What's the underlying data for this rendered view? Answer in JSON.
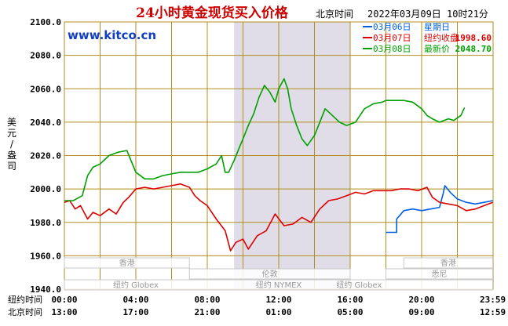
{
  "header": {
    "title": "24小时黄金现货买入价格",
    "timezone": "北京时间",
    "datetime": "2022年03月09日 10时21分",
    "website": "www.kitco.cn"
  },
  "colors": {
    "title": "#cc0000",
    "website": "#1040c0",
    "series_0306": "#0060e0",
    "series_0307": "#dd0000",
    "series_0308": "#00a000",
    "grid": "#b08e1a",
    "axis_text": "#000000",
    "shade": "#e0dde8"
  },
  "y_axis_label": [
    "美",
    "元",
    "/",
    "盎",
    "司"
  ],
  "axis_row_labels": {
    "ny": "纽约时间",
    "bj": "北京时间"
  },
  "sessions": {
    "hongkong": "香港",
    "newyork_globex": "纽约 Globex",
    "london": "伦敦",
    "newyork_nymex": "纽约 NYMEX",
    "sydney": "悉尼"
  },
  "chart_data": {
    "type": "line",
    "title": "24小时黄金现货买入价格",
    "ylabel": "美元/盎司",
    "ylim": [
      1940,
      2100
    ],
    "yticks": [
      "2100.0",
      "2080.0",
      "2060.0",
      "2040.0",
      "2020.0",
      "2000.0",
      "1980.0",
      "1960.0",
      "1940.0"
    ],
    "xlim": [
      0,
      24
    ],
    "xticks_ny": [
      "00:00",
      "04:00",
      "08:00",
      "12:00",
      "16:00",
      "20:00",
      "23:59"
    ],
    "xticks_bj": [
      "13:00",
      "17:00",
      "21:00",
      "01:00",
      "05:00",
      "09:00",
      "12:59"
    ],
    "shaded_hours": [
      9.5,
      16
    ],
    "legend": [
      {
        "date": "03月06日",
        "label": "星期日",
        "value": ""
      },
      {
        "date": "03月07日",
        "label": "纽约收盘",
        "value": "1998.60"
      },
      {
        "date": "03月08日",
        "label": "最新价",
        "value": "2048.70"
      }
    ],
    "series": [
      {
        "name": "03月06日",
        "points": [
          [
            18.0,
            1974
          ],
          [
            18.6,
            1974
          ],
          [
            18.6,
            1982
          ],
          [
            19.0,
            1987
          ],
          [
            19.5,
            1988
          ],
          [
            20.0,
            1987
          ],
          [
            20.5,
            1988
          ],
          [
            21.0,
            1989
          ],
          [
            21.2,
            1997
          ],
          [
            21.3,
            2002
          ],
          [
            21.6,
            1998
          ],
          [
            22.0,
            1994
          ],
          [
            22.5,
            1992
          ],
          [
            23.0,
            1991
          ],
          [
            23.5,
            1992
          ],
          [
            23.98,
            1993
          ]
        ]
      },
      {
        "name": "03月07日",
        "points": [
          [
            0.0,
            1992
          ],
          [
            0.3,
            1993
          ],
          [
            0.6,
            1988
          ],
          [
            0.9,
            1990
          ],
          [
            1.3,
            1982
          ],
          [
            1.6,
            1986
          ],
          [
            2.0,
            1984
          ],
          [
            2.5,
            1988
          ],
          [
            2.9,
            1985
          ],
          [
            3.3,
            1992
          ],
          [
            3.6,
            1995
          ],
          [
            4.0,
            2000
          ],
          [
            4.5,
            2001
          ],
          [
            5.0,
            2000
          ],
          [
            5.5,
            2001
          ],
          [
            6.0,
            2002
          ],
          [
            6.5,
            2003
          ],
          [
            7.0,
            2001
          ],
          [
            7.3,
            1996
          ],
          [
            7.6,
            1993
          ],
          [
            8.0,
            1990
          ],
          [
            8.5,
            1982
          ],
          [
            9.0,
            1975
          ],
          [
            9.3,
            1963
          ],
          [
            9.6,
            1968
          ],
          [
            10.0,
            1970
          ],
          [
            10.3,
            1964
          ],
          [
            10.8,
            1972
          ],
          [
            11.3,
            1975
          ],
          [
            11.8,
            1985
          ],
          [
            12.3,
            1978
          ],
          [
            12.8,
            1979
          ],
          [
            13.3,
            1983
          ],
          [
            13.8,
            1980
          ],
          [
            14.3,
            1988
          ],
          [
            14.8,
            1993
          ],
          [
            15.3,
            1994
          ],
          [
            15.8,
            1996
          ],
          [
            16.3,
            1998
          ],
          [
            16.8,
            1997
          ],
          [
            17.3,
            1999
          ],
          [
            17.8,
            1999
          ],
          [
            18.3,
            1999
          ],
          [
            18.8,
            2000
          ],
          [
            19.3,
            2000
          ],
          [
            19.8,
            1999
          ],
          [
            20.3,
            2001
          ],
          [
            20.6,
            1995
          ],
          [
            21.0,
            1992
          ],
          [
            21.5,
            1991
          ],
          [
            22.0,
            1990
          ],
          [
            22.5,
            1987
          ],
          [
            23.0,
            1988
          ],
          [
            23.5,
            1990
          ],
          [
            23.98,
            1992
          ]
        ]
      },
      {
        "name": "03月08日",
        "points": [
          [
            0.0,
            1993
          ],
          [
            0.5,
            1993
          ],
          [
            1.0,
            1996
          ],
          [
            1.3,
            2008
          ],
          [
            1.6,
            2013
          ],
          [
            2.0,
            2015
          ],
          [
            2.5,
            2020
          ],
          [
            3.0,
            2022
          ],
          [
            3.5,
            2023
          ],
          [
            4.0,
            2010
          ],
          [
            4.5,
            2006
          ],
          [
            5.0,
            2006
          ],
          [
            5.5,
            2008
          ],
          [
            6.0,
            2009
          ],
          [
            6.5,
            2010
          ],
          [
            7.0,
            2010
          ],
          [
            7.5,
            2010
          ],
          [
            8.0,
            2012
          ],
          [
            8.5,
            2015
          ],
          [
            8.8,
            2020
          ],
          [
            9.0,
            2010
          ],
          [
            9.2,
            2010
          ],
          [
            9.5,
            2017
          ],
          [
            9.8,
            2025
          ],
          [
            10.0,
            2030
          ],
          [
            10.3,
            2038
          ],
          [
            10.6,
            2045
          ],
          [
            10.9,
            2055
          ],
          [
            11.2,
            2062
          ],
          [
            11.5,
            2058
          ],
          [
            11.8,
            2052
          ],
          [
            12.0,
            2060
          ],
          [
            12.3,
            2066
          ],
          [
            12.5,
            2060
          ],
          [
            12.7,
            2048
          ],
          [
            13.0,
            2038
          ],
          [
            13.3,
            2030
          ],
          [
            13.6,
            2026
          ],
          [
            14.0,
            2032
          ],
          [
            14.3,
            2040
          ],
          [
            14.6,
            2048
          ],
          [
            15.0,
            2044
          ],
          [
            15.4,
            2040
          ],
          [
            15.8,
            2038
          ],
          [
            16.3,
            2040
          ],
          [
            16.8,
            2048
          ],
          [
            17.3,
            2051
          ],
          [
            17.8,
            2052
          ],
          [
            18.0,
            2053
          ],
          [
            18.5,
            2053
          ],
          [
            19.0,
            2053
          ],
          [
            19.5,
            2052
          ],
          [
            20.0,
            2048
          ],
          [
            20.3,
            2044
          ],
          [
            20.6,
            2042
          ],
          [
            21.0,
            2040
          ],
          [
            21.5,
            2042
          ],
          [
            21.8,
            2041
          ],
          [
            22.2,
            2044
          ],
          [
            22.4,
            2048.7
          ]
        ]
      }
    ]
  }
}
